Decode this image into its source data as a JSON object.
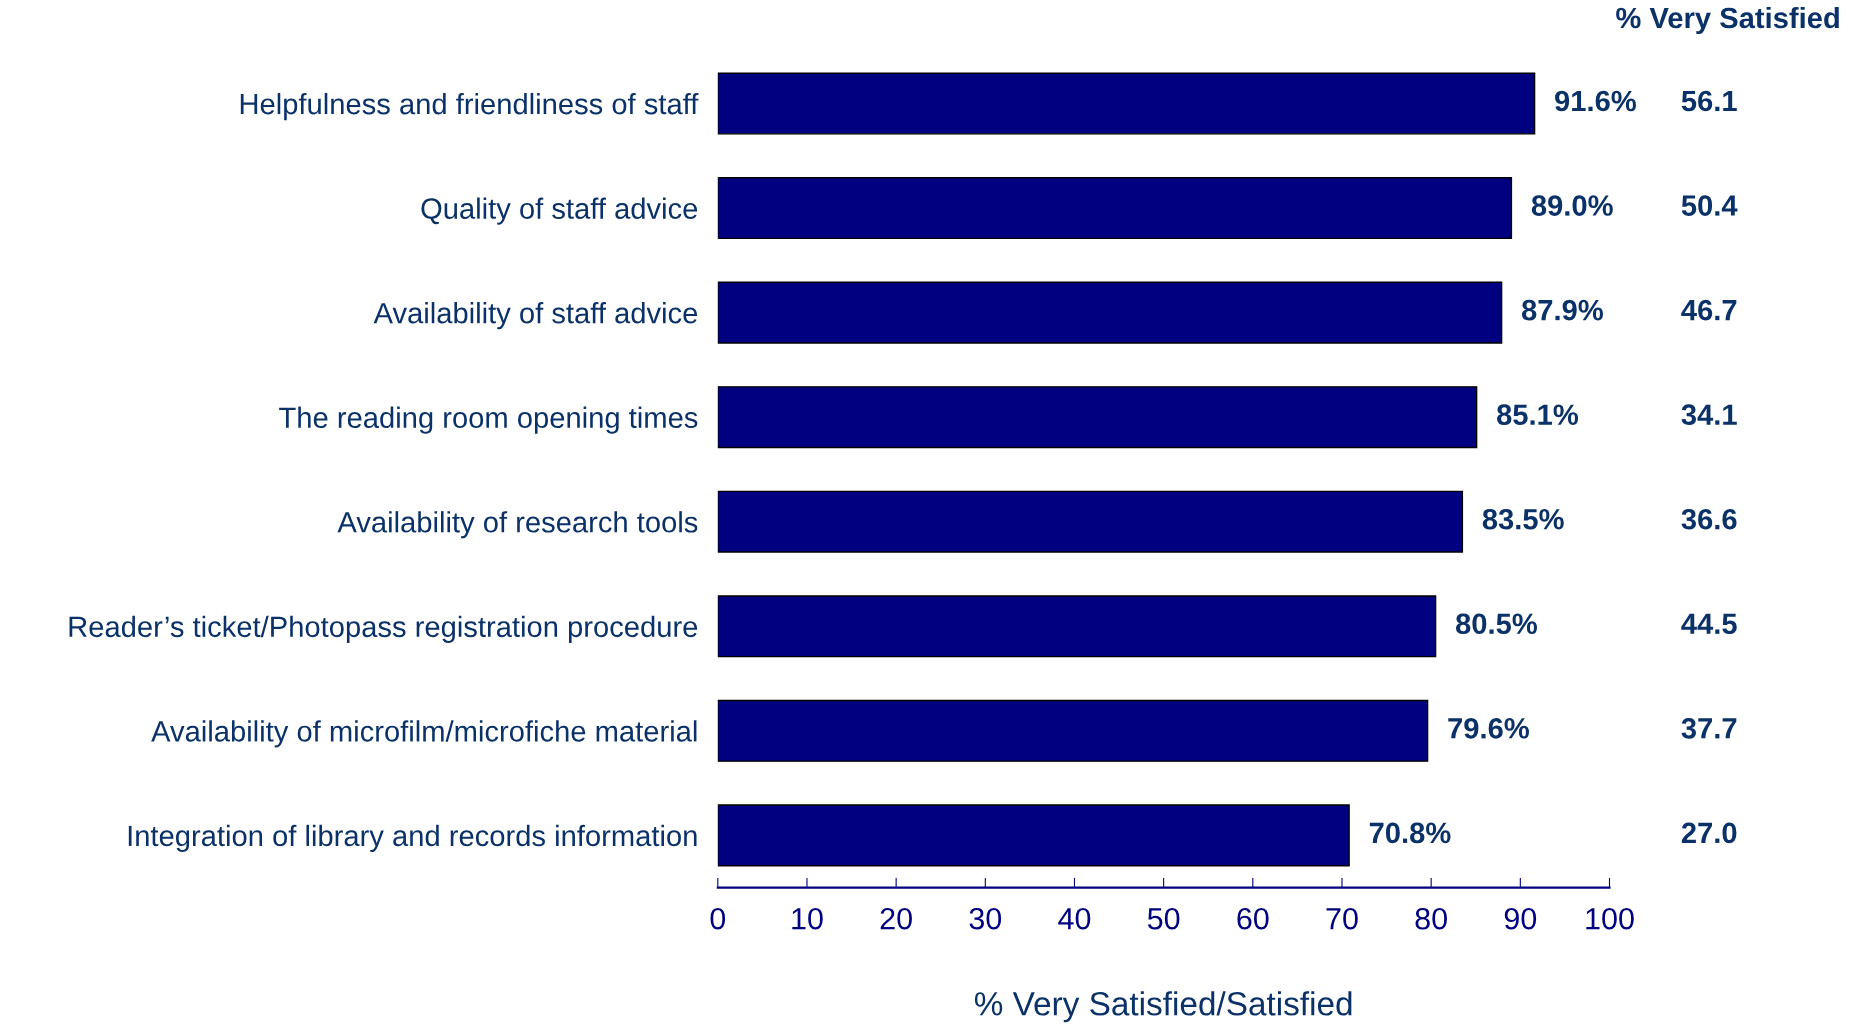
{
  "chart_data": {
    "type": "bar",
    "orientation": "horizontal",
    "xlabel": "% Very Satisfied/Satisfied",
    "categories": [
      "Helpfulness and friendliness of staff",
      "Quality of staff advice",
      "Availability of staff advice",
      "The reading room opening times",
      "Availability of research tools",
      "Reader’s ticket/Photopass registration procedure",
      "Availability of microfilm/microfiche material",
      "Integration of library and records information"
    ],
    "values": [
      91.6,
      89.0,
      87.9,
      85.1,
      83.5,
      80.5,
      79.6,
      70.8
    ],
    "value_labels": [
      "91.6%",
      "89.0%",
      "87.9%",
      "85.1%",
      "83.5%",
      "80.5%",
      "79.6%",
      "70.8%"
    ],
    "color": "#000080",
    "xlim": [
      0,
      100
    ],
    "xticks": [
      0,
      10,
      20,
      30,
      40,
      50,
      60,
      70,
      80,
      90,
      100
    ],
    "grid": false,
    "annotations": [
      "% Very Satisfied",
      "56.1",
      "50.4",
      "46.7",
      "34.1",
      "36.6",
      "44.5",
      "37.7",
      "27.0"
    ]
  }
}
